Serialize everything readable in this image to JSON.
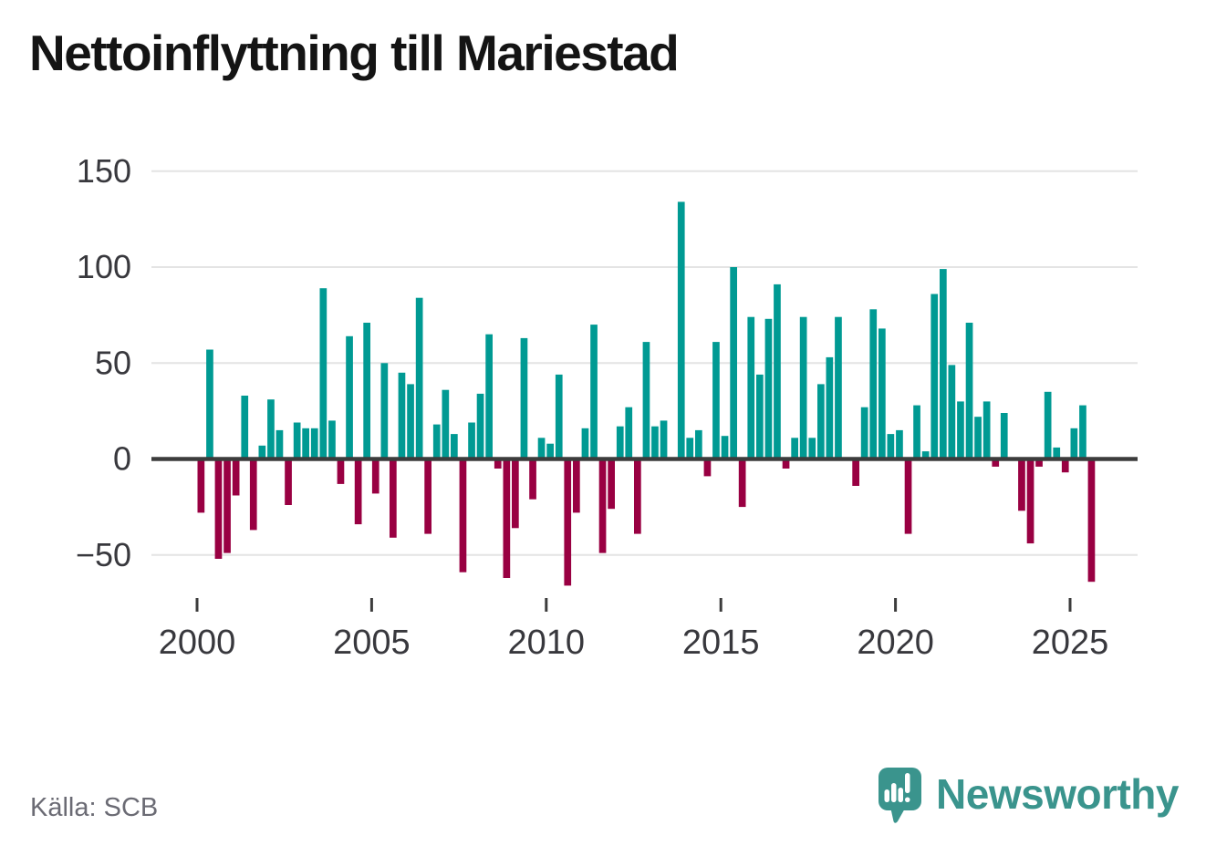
{
  "title": "Nettoinflyttning till Mariestad",
  "source": "Källa: SCB",
  "branding": {
    "name": "Newsworthy",
    "color": "#3a948d"
  },
  "chart_data": {
    "type": "bar",
    "title": "Nettoinflyttning till Mariestad",
    "xlabel": "",
    "ylabel": "",
    "frequency": "quarterly",
    "start_year": 2000,
    "start_quarter": 1,
    "values": [
      -28,
      57,
      -52,
      -49,
      -19,
      33,
      -37,
      7,
      31,
      15,
      -24,
      19,
      16,
      16,
      89,
      20,
      -13,
      64,
      -34,
      71,
      -18,
      50,
      -41,
      45,
      39,
      84,
      -39,
      18,
      36,
      13,
      -59,
      19,
      34,
      65,
      -5,
      -62,
      -36,
      63,
      -21,
      11,
      8,
      44,
      -66,
      -28,
      16,
      70,
      -49,
      -26,
      17,
      27,
      -39,
      61,
      17,
      20,
      0,
      134,
      11,
      15,
      -9,
      61,
      12,
      100,
      -25,
      74,
      44,
      73,
      91,
      -5,
      11,
      74,
      11,
      39,
      53,
      74,
      0,
      -14,
      27,
      78,
      68,
      13,
      15,
      -39,
      28,
      4,
      86,
      99,
      49,
      30,
      71,
      22,
      30,
      -4,
      24,
      0,
      -27,
      -44,
      -4,
      35,
      6,
      -7,
      16,
      28,
      -64
    ],
    "y_ticks": [
      {
        "value": 150,
        "label": "150"
      },
      {
        "value": 100,
        "label": "100"
      },
      {
        "value": 50,
        "label": "50"
      },
      {
        "value": 0,
        "label": "0"
      },
      {
        "value": -50,
        "label": "−50"
      }
    ],
    "x_ticks": [
      "2000",
      "2005",
      "2010",
      "2015",
      "2020",
      "2025"
    ],
    "ylim": [
      -70,
      150
    ],
    "grid": true,
    "legend": "none",
    "colors": {
      "positive": "#009a93",
      "negative": "#990042",
      "gridline": "#e4e4e4",
      "zero_line": "#3c3c3c",
      "axis_text": "#38383d"
    }
  }
}
